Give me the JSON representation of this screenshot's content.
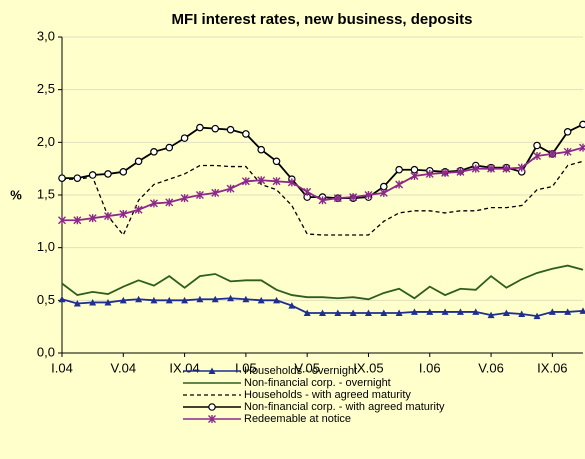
{
  "chart_data": {
    "type": "line",
    "title": "MFI interest rates, new business, deposits",
    "y_label": "%",
    "categories": [
      "I.04",
      null,
      null,
      null,
      "V.04",
      null,
      null,
      null,
      "IX.04",
      null,
      null,
      null,
      "I.05",
      null,
      null,
      null,
      "V.05",
      null,
      null,
      null,
      "IX.05",
      null,
      null,
      null,
      "I.06",
      null,
      null,
      null,
      "V.06",
      null,
      null,
      null,
      "IX.06",
      null,
      null
    ],
    "ylim": [
      0,
      3
    ],
    "yticks": [
      {
        "value": 0,
        "label": "0,0"
      },
      {
        "value": 0.5,
        "label": "0,5"
      },
      {
        "value": 1,
        "label": "1,0"
      },
      {
        "value": 1.5,
        "label": "1,5"
      },
      {
        "value": 2,
        "label": "2,0"
      },
      {
        "value": 2.5,
        "label": "2,5"
      },
      {
        "value": 3,
        "label": "3,0"
      }
    ],
    "grid": true,
    "legend": "bottom",
    "series": [
      {
        "name": "Households - overnight",
        "color": "#1f2f8f",
        "marker": "triangle",
        "style": "solid",
        "values": [
          0.51,
          0.47,
          0.48,
          0.48,
          0.5,
          0.51,
          0.5,
          0.5,
          0.5,
          0.51,
          0.51,
          0.52,
          0.51,
          0.5,
          0.5,
          0.45,
          0.38,
          0.38,
          0.38,
          0.38,
          0.38,
          0.38,
          0.38,
          0.39,
          0.39,
          0.39,
          0.39,
          0.39,
          0.36,
          0.38,
          0.37,
          0.35,
          0.39,
          0.39,
          0.4
        ]
      },
      {
        "name": "Non-financial corp. - overnight",
        "color": "#2e5e1e",
        "marker": "none",
        "style": "solid",
        "values": [
          0.66,
          0.55,
          0.58,
          0.56,
          0.63,
          0.69,
          0.64,
          0.73,
          0.62,
          0.73,
          0.75,
          0.68,
          0.69,
          0.69,
          0.6,
          0.55,
          0.53,
          0.53,
          0.52,
          0.53,
          0.51,
          0.57,
          0.61,
          0.52,
          0.63,
          0.55,
          0.61,
          0.6,
          0.73,
          0.62,
          0.7,
          0.76,
          0.8,
          0.83,
          0.79
        ]
      },
      {
        "name": "Households - with agreed maturity",
        "color": "#000000",
        "marker": "none",
        "style": "dash",
        "values": [
          1.65,
          1.65,
          1.67,
          1.3,
          1.12,
          1.45,
          1.6,
          1.65,
          1.7,
          1.78,
          1.78,
          1.77,
          1.77,
          1.6,
          1.55,
          1.4,
          1.13,
          1.12,
          1.12,
          1.12,
          1.12,
          1.25,
          1.33,
          1.35,
          1.35,
          1.33,
          1.35,
          1.35,
          1.38,
          1.38,
          1.4,
          1.55,
          1.58,
          1.78,
          1.82
        ]
      },
      {
        "name": "Non-financial corp. - with agreed maturity",
        "color": "#000000",
        "marker": "circle",
        "style": "solid",
        "values": [
          1.66,
          1.66,
          1.69,
          1.7,
          1.72,
          1.82,
          1.91,
          1.95,
          2.04,
          2.14,
          2.13,
          2.12,
          2.08,
          1.93,
          1.82,
          1.65,
          1.48,
          1.48,
          1.47,
          1.47,
          1.48,
          1.58,
          1.74,
          1.74,
          1.73,
          1.72,
          1.73,
          1.78,
          1.76,
          1.76,
          1.72,
          1.97,
          1.89,
          2.1,
          2.17
        ]
      },
      {
        "name": "Redeemable at notice",
        "color": "#8b2a8b",
        "marker": "star",
        "style": "solid",
        "values": [
          1.26,
          1.26,
          1.28,
          1.3,
          1.32,
          1.36,
          1.42,
          1.43,
          1.47,
          1.5,
          1.52,
          1.56,
          1.63,
          1.64,
          1.63,
          1.62,
          1.53,
          1.45,
          1.47,
          1.48,
          1.5,
          1.52,
          1.6,
          1.68,
          1.7,
          1.71,
          1.72,
          1.75,
          1.75,
          1.75,
          1.76,
          1.87,
          1.89,
          1.91,
          1.95
        ]
      }
    ]
  }
}
